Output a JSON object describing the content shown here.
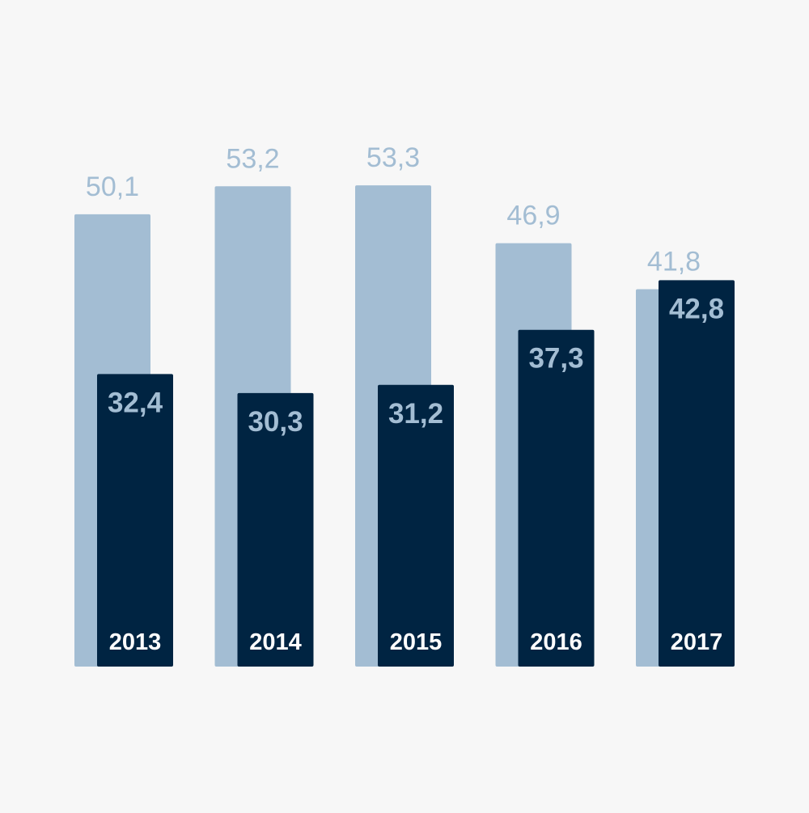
{
  "chart_data": {
    "type": "bar",
    "categories": [
      "2013",
      "2014",
      "2015",
      "2016",
      "2017"
    ],
    "series": [
      {
        "value_labels": [
          "50,1",
          "53,2",
          "53,3",
          "46,9",
          "41,8"
        ],
        "values": [
          50.1,
          53.2,
          53.3,
          46.9,
          41.8
        ],
        "color": "#a3bdd3"
      },
      {
        "value_labels": [
          "32,4",
          "30,3",
          "31,2",
          "37,3",
          "42,8"
        ],
        "values": [
          32.4,
          30.3,
          31.2,
          37.3,
          42.8
        ],
        "color": "#002442"
      }
    ],
    "ylim": [
      0,
      60
    ],
    "grid": false,
    "legend": "none",
    "category_label_color": "#ffffff",
    "back_label_color": "#a3bdd3",
    "front_label_color": "#a3bdd3",
    "background": "#f7f7f7"
  }
}
